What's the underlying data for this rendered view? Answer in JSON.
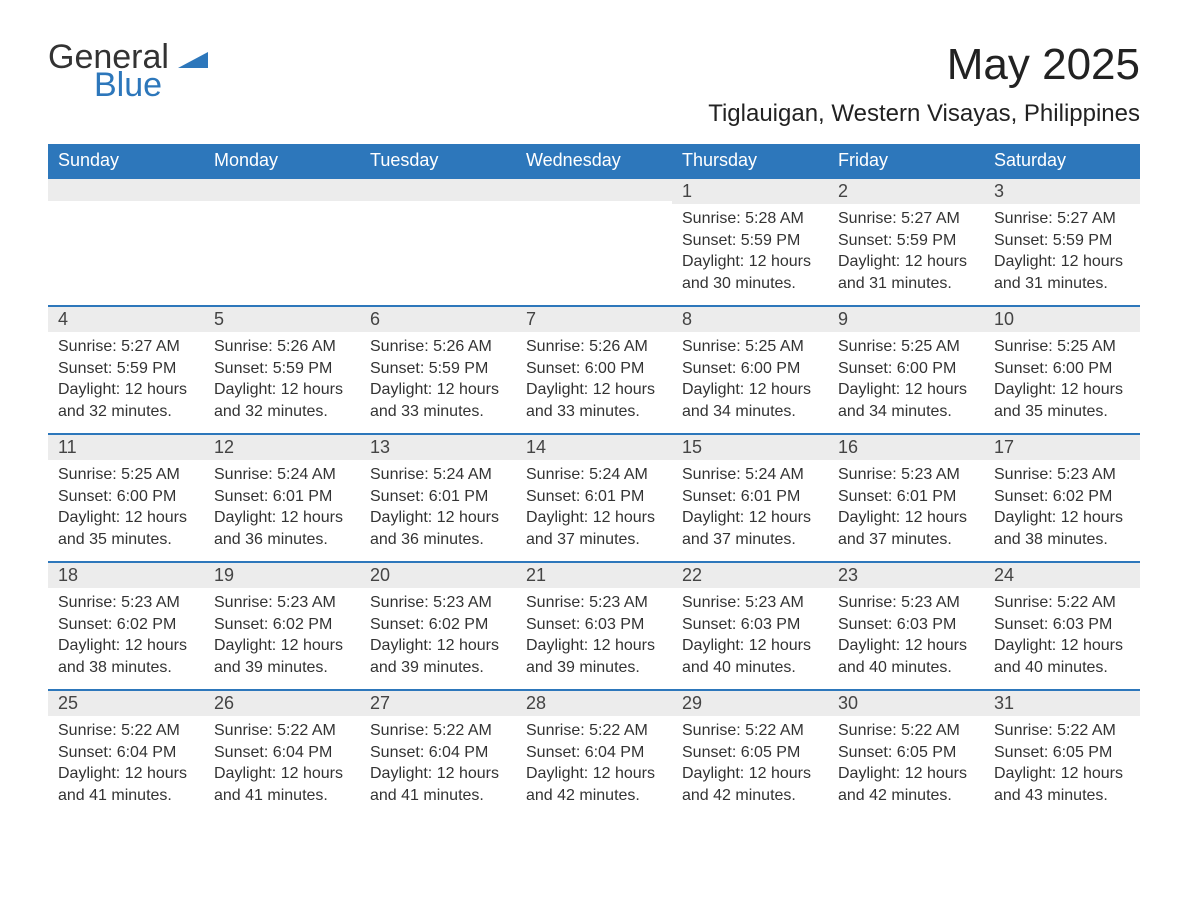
{
  "brand": {
    "text1": "General",
    "text2": "Blue",
    "icon_color": "#2d77bb"
  },
  "title": "May 2025",
  "location": "Tiglauigan, Western Visayas, Philippines",
  "colors": {
    "header_bg": "#2d77bb",
    "header_fg": "#ffffff",
    "daynum_bg": "#ececec",
    "row_border": "#2d77bb",
    "text": "#333333",
    "page_bg": "#ffffff"
  },
  "typography": {
    "title_fontsize": 44,
    "location_fontsize": 24,
    "header_fontsize": 18,
    "body_fontsize": 16
  },
  "dayHeaders": [
    "Sunday",
    "Monday",
    "Tuesday",
    "Wednesday",
    "Thursday",
    "Friday",
    "Saturday"
  ],
  "weeks": [
    [
      null,
      null,
      null,
      null,
      {
        "n": "1",
        "sunrise": "Sunrise: 5:28 AM",
        "sunset": "Sunset: 5:59 PM",
        "daylight": "Daylight: 12 hours and 30 minutes."
      },
      {
        "n": "2",
        "sunrise": "Sunrise: 5:27 AM",
        "sunset": "Sunset: 5:59 PM",
        "daylight": "Daylight: 12 hours and 31 minutes."
      },
      {
        "n": "3",
        "sunrise": "Sunrise: 5:27 AM",
        "sunset": "Sunset: 5:59 PM",
        "daylight": "Daylight: 12 hours and 31 minutes."
      }
    ],
    [
      {
        "n": "4",
        "sunrise": "Sunrise: 5:27 AM",
        "sunset": "Sunset: 5:59 PM",
        "daylight": "Daylight: 12 hours and 32 minutes."
      },
      {
        "n": "5",
        "sunrise": "Sunrise: 5:26 AM",
        "sunset": "Sunset: 5:59 PM",
        "daylight": "Daylight: 12 hours and 32 minutes."
      },
      {
        "n": "6",
        "sunrise": "Sunrise: 5:26 AM",
        "sunset": "Sunset: 5:59 PM",
        "daylight": "Daylight: 12 hours and 33 minutes."
      },
      {
        "n": "7",
        "sunrise": "Sunrise: 5:26 AM",
        "sunset": "Sunset: 6:00 PM",
        "daylight": "Daylight: 12 hours and 33 minutes."
      },
      {
        "n": "8",
        "sunrise": "Sunrise: 5:25 AM",
        "sunset": "Sunset: 6:00 PM",
        "daylight": "Daylight: 12 hours and 34 minutes."
      },
      {
        "n": "9",
        "sunrise": "Sunrise: 5:25 AM",
        "sunset": "Sunset: 6:00 PM",
        "daylight": "Daylight: 12 hours and 34 minutes."
      },
      {
        "n": "10",
        "sunrise": "Sunrise: 5:25 AM",
        "sunset": "Sunset: 6:00 PM",
        "daylight": "Daylight: 12 hours and 35 minutes."
      }
    ],
    [
      {
        "n": "11",
        "sunrise": "Sunrise: 5:25 AM",
        "sunset": "Sunset: 6:00 PM",
        "daylight": "Daylight: 12 hours and 35 minutes."
      },
      {
        "n": "12",
        "sunrise": "Sunrise: 5:24 AM",
        "sunset": "Sunset: 6:01 PM",
        "daylight": "Daylight: 12 hours and 36 minutes."
      },
      {
        "n": "13",
        "sunrise": "Sunrise: 5:24 AM",
        "sunset": "Sunset: 6:01 PM",
        "daylight": "Daylight: 12 hours and 36 minutes."
      },
      {
        "n": "14",
        "sunrise": "Sunrise: 5:24 AM",
        "sunset": "Sunset: 6:01 PM",
        "daylight": "Daylight: 12 hours and 37 minutes."
      },
      {
        "n": "15",
        "sunrise": "Sunrise: 5:24 AM",
        "sunset": "Sunset: 6:01 PM",
        "daylight": "Daylight: 12 hours and 37 minutes."
      },
      {
        "n": "16",
        "sunrise": "Sunrise: 5:23 AM",
        "sunset": "Sunset: 6:01 PM",
        "daylight": "Daylight: 12 hours and 37 minutes."
      },
      {
        "n": "17",
        "sunrise": "Sunrise: 5:23 AM",
        "sunset": "Sunset: 6:02 PM",
        "daylight": "Daylight: 12 hours and 38 minutes."
      }
    ],
    [
      {
        "n": "18",
        "sunrise": "Sunrise: 5:23 AM",
        "sunset": "Sunset: 6:02 PM",
        "daylight": "Daylight: 12 hours and 38 minutes."
      },
      {
        "n": "19",
        "sunrise": "Sunrise: 5:23 AM",
        "sunset": "Sunset: 6:02 PM",
        "daylight": "Daylight: 12 hours and 39 minutes."
      },
      {
        "n": "20",
        "sunrise": "Sunrise: 5:23 AM",
        "sunset": "Sunset: 6:02 PM",
        "daylight": "Daylight: 12 hours and 39 minutes."
      },
      {
        "n": "21",
        "sunrise": "Sunrise: 5:23 AM",
        "sunset": "Sunset: 6:03 PM",
        "daylight": "Daylight: 12 hours and 39 minutes."
      },
      {
        "n": "22",
        "sunrise": "Sunrise: 5:23 AM",
        "sunset": "Sunset: 6:03 PM",
        "daylight": "Daylight: 12 hours and 40 minutes."
      },
      {
        "n": "23",
        "sunrise": "Sunrise: 5:23 AM",
        "sunset": "Sunset: 6:03 PM",
        "daylight": "Daylight: 12 hours and 40 minutes."
      },
      {
        "n": "24",
        "sunrise": "Sunrise: 5:22 AM",
        "sunset": "Sunset: 6:03 PM",
        "daylight": "Daylight: 12 hours and 40 minutes."
      }
    ],
    [
      {
        "n": "25",
        "sunrise": "Sunrise: 5:22 AM",
        "sunset": "Sunset: 6:04 PM",
        "daylight": "Daylight: 12 hours and 41 minutes."
      },
      {
        "n": "26",
        "sunrise": "Sunrise: 5:22 AM",
        "sunset": "Sunset: 6:04 PM",
        "daylight": "Daylight: 12 hours and 41 minutes."
      },
      {
        "n": "27",
        "sunrise": "Sunrise: 5:22 AM",
        "sunset": "Sunset: 6:04 PM",
        "daylight": "Daylight: 12 hours and 41 minutes."
      },
      {
        "n": "28",
        "sunrise": "Sunrise: 5:22 AM",
        "sunset": "Sunset: 6:04 PM",
        "daylight": "Daylight: 12 hours and 42 minutes."
      },
      {
        "n": "29",
        "sunrise": "Sunrise: 5:22 AM",
        "sunset": "Sunset: 6:05 PM",
        "daylight": "Daylight: 12 hours and 42 minutes."
      },
      {
        "n": "30",
        "sunrise": "Sunrise: 5:22 AM",
        "sunset": "Sunset: 6:05 PM",
        "daylight": "Daylight: 12 hours and 42 minutes."
      },
      {
        "n": "31",
        "sunrise": "Sunrise: 5:22 AM",
        "sunset": "Sunset: 6:05 PM",
        "daylight": "Daylight: 12 hours and 43 minutes."
      }
    ]
  ]
}
